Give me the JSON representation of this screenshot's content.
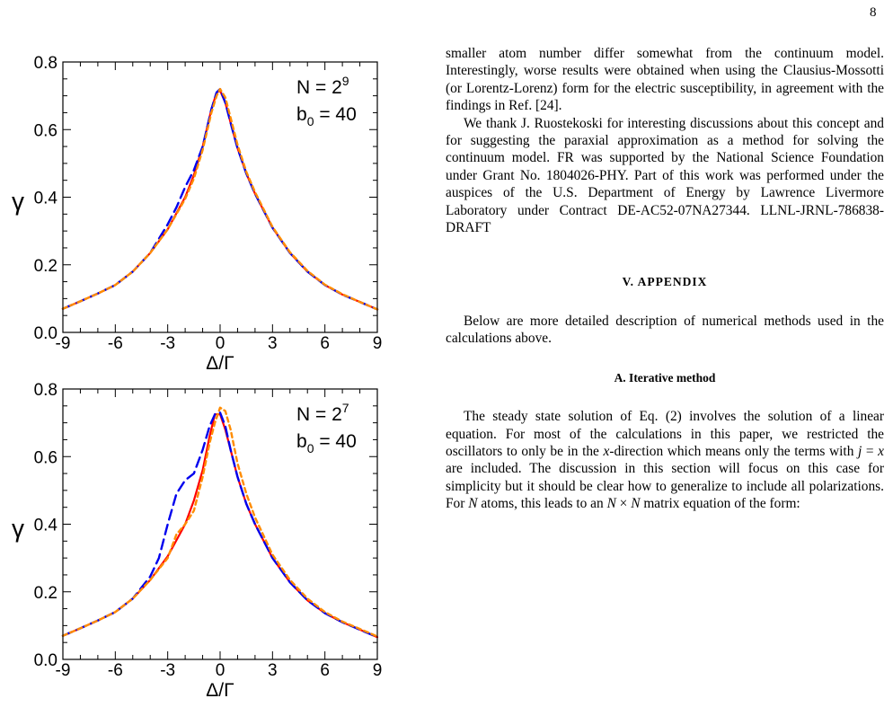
{
  "page_number": "8",
  "right_column": {
    "para1": "smaller atom number differ somewhat from the continuum model. Interestingly, worse results were obtained when using the Clausius-Mossotti (or Lorentz-Lorenz) form for the electric susceptibility, in agreement with the findings in Ref. [24].",
    "para2": "We thank J. Ruostekoski for interesting discussions about this concept and for suggesting the paraxial approximation as a method for solving the continuum model. FR was supported by the National Science Foundation under Grant No. 1804026-PHY. Part of this work was performed under the auspices of the U.S. Department of Energy by Lawrence Livermore Laboratory under Contract DE-AC52-07NA27344. LLNL-JRNL-786838-DRAFT",
    "section_heading": "V.   APPENDIX",
    "para3": "Below are more detailed description of numerical methods used in the calculations above.",
    "subsection_heading": "A.   Iterative method",
    "para4_a": "The steady state solution of Eq. (2) involves the solution of a linear equation. For most of the calculations in this paper, we restricted the oscillators to only be in the ",
    "para4_x1": "x",
    "para4_b": "-direction which means only the terms with ",
    "para4_j": "j",
    "para4_c": " = ",
    "para4_x2": "x",
    "para4_d": " are included. The discussion in this section will focus on this case for simplicity but it should be clear how to generalize to include all polarizations. For ",
    "para4_N1": "N",
    "para4_e": " atoms, this leads to an ",
    "para4_N2": "N",
    "para4_f": " × ",
    "para4_N3": "N",
    "para4_g": " matrix equation of the form:"
  },
  "chart_data": [
    {
      "type": "line",
      "xlabel": "Δ/Γ",
      "ylabel": "γ",
      "xlim": [
        -9,
        9
      ],
      "ylim": [
        0,
        0.8
      ],
      "xticks": [
        -9,
        -6,
        -3,
        0,
        3,
        6,
        9
      ],
      "xtick_labels": [
        "-9",
        "-6",
        "-3",
        "0",
        "3",
        "6",
        "9"
      ],
      "yticks": [
        0,
        0.2,
        0.4,
        0.6,
        0.8
      ],
      "ytick_labels": [
        "0.0",
        "0.2",
        "0.4",
        "0.6",
        "0.8"
      ],
      "annotation_N_base": "N = 2",
      "annotation_N_exp": "9",
      "annotation_b_base": "b",
      "annotation_b_sub": "0",
      "annotation_b_val": " = 40",
      "series": [
        {
          "color": "#ff0000",
          "style": "solid",
          "x": [
            -9,
            -8,
            -7,
            -6,
            -5,
            -4,
            -3,
            -2,
            -1.5,
            -1,
            -0.5,
            -0.2,
            0,
            0.3,
            0.6,
            1,
            1.5,
            2,
            3,
            4,
            5,
            6,
            7,
            8,
            9
          ],
          "y": [
            0.07,
            0.092,
            0.115,
            0.14,
            0.18,
            0.235,
            0.305,
            0.4,
            0.465,
            0.55,
            0.66,
            0.71,
            0.715,
            0.68,
            0.62,
            0.545,
            0.47,
            0.41,
            0.31,
            0.235,
            0.18,
            0.14,
            0.112,
            0.09,
            0.068
          ]
        },
        {
          "color": "#0000ee",
          "style": "dashed",
          "x": [
            -9,
            -8,
            -7,
            -6,
            -5,
            -4,
            -3,
            -2.5,
            -2,
            -1.5,
            -1,
            -0.5,
            -0.2,
            0,
            0.3,
            0.6,
            1,
            1.5,
            2,
            3,
            4,
            5,
            6,
            7,
            8,
            9
          ],
          "y": [
            0.07,
            0.092,
            0.115,
            0.14,
            0.18,
            0.235,
            0.32,
            0.37,
            0.43,
            0.48,
            0.55,
            0.66,
            0.71,
            0.72,
            0.68,
            0.62,
            0.545,
            0.47,
            0.41,
            0.31,
            0.235,
            0.18,
            0.14,
            0.112,
            0.09,
            0.068
          ]
        },
        {
          "color": "#ff8c00",
          "style": "dashed",
          "x": [
            -9,
            -8,
            -7,
            -6,
            -5,
            -4,
            -3,
            -2,
            -1.5,
            -1,
            -0.5,
            -0.2,
            0,
            0.3,
            0.6,
            1,
            1.5,
            2,
            3,
            4,
            5,
            6,
            7,
            8,
            9
          ],
          "y": [
            0.07,
            0.092,
            0.115,
            0.14,
            0.18,
            0.235,
            0.305,
            0.395,
            0.455,
            0.54,
            0.65,
            0.7,
            0.72,
            0.695,
            0.635,
            0.555,
            0.475,
            0.415,
            0.312,
            0.237,
            0.182,
            0.141,
            0.113,
            0.09,
            0.068
          ]
        }
      ]
    },
    {
      "type": "line",
      "xlabel": "Δ/Γ",
      "ylabel": "γ",
      "xlim": [
        -9,
        9
      ],
      "ylim": [
        0,
        0.8
      ],
      "xticks": [
        -9,
        -6,
        -3,
        0,
        3,
        6,
        9
      ],
      "xtick_labels": [
        "-9",
        "-6",
        "-3",
        "0",
        "3",
        "6",
        "9"
      ],
      "yticks": [
        0,
        0.2,
        0.4,
        0.6,
        0.8
      ],
      "ytick_labels": [
        "0.0",
        "0.2",
        "0.4",
        "0.6",
        "0.8"
      ],
      "annotation_N_base": "N = 2",
      "annotation_N_exp": "7",
      "annotation_b_base": "b",
      "annotation_b_sub": "0",
      "annotation_b_val": " = 40",
      "series": [
        {
          "color": "#ff0000",
          "style": "solid",
          "x": [
            -9,
            -8,
            -7,
            -6,
            -5,
            -4,
            -3,
            -2,
            -1.5,
            -1,
            -0.6,
            -0.3,
            0,
            0.3,
            0.6,
            1,
            1.5,
            2,
            3,
            4,
            5,
            6,
            7,
            8,
            9
          ],
          "y": [
            0.07,
            0.092,
            0.115,
            0.14,
            0.18,
            0.235,
            0.305,
            0.4,
            0.47,
            0.56,
            0.66,
            0.725,
            0.725,
            0.68,
            0.62,
            0.54,
            0.46,
            0.4,
            0.3,
            0.228,
            0.175,
            0.137,
            0.11,
            0.088,
            0.066
          ]
        },
        {
          "color": "#0000ee",
          "style": "dashed",
          "x": [
            -9,
            -8,
            -7,
            -6,
            -5,
            -4,
            -3.5,
            -3,
            -2.5,
            -2,
            -1.5,
            -1,
            -0.6,
            -0.3,
            0,
            0.3,
            0.6,
            1,
            1.5,
            2,
            3,
            4,
            5,
            6,
            7,
            8,
            9
          ],
          "y": [
            0.07,
            0.092,
            0.115,
            0.14,
            0.18,
            0.245,
            0.3,
            0.4,
            0.49,
            0.53,
            0.55,
            0.62,
            0.69,
            0.725,
            0.73,
            0.69,
            0.62,
            0.54,
            0.46,
            0.4,
            0.3,
            0.228,
            0.175,
            0.137,
            0.11,
            0.088,
            0.066
          ]
        },
        {
          "color": "#ff8c00",
          "style": "dashed",
          "x": [
            -9,
            -8,
            -7,
            -6,
            -5,
            -4,
            -3,
            -2.5,
            -2,
            -1.5,
            -1,
            -0.6,
            -0.3,
            0,
            0.3,
            0.6,
            1,
            1.5,
            2,
            3,
            4,
            5,
            6,
            7,
            8,
            9
          ],
          "y": [
            0.07,
            0.092,
            0.115,
            0.14,
            0.18,
            0.235,
            0.3,
            0.37,
            0.4,
            0.44,
            0.54,
            0.64,
            0.7,
            0.745,
            0.735,
            0.68,
            0.58,
            0.49,
            0.42,
            0.31,
            0.235,
            0.18,
            0.14,
            0.112,
            0.09,
            0.068
          ]
        }
      ]
    }
  ]
}
